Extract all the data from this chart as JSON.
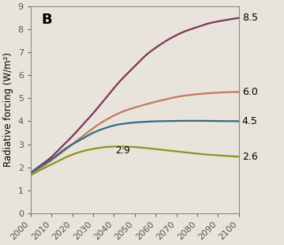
{
  "title_label": "B",
  "ylabel": "Radiative forcing (W/m²)",
  "xlim": [
    2000,
    2100
  ],
  "ylim": [
    0,
    9
  ],
  "yticks": [
    0,
    1,
    2,
    3,
    4,
    5,
    6,
    7,
    8,
    9
  ],
  "xticks": [
    2000,
    2010,
    2020,
    2030,
    2040,
    2050,
    2060,
    2070,
    2080,
    2090,
    2100
  ],
  "background_color": "#e8e4dc",
  "plot_bg_color": "#e8e4dc",
  "rcp85_color": "#7b3558",
  "rcp60_color": "#c07858",
  "rcp45_color": "#2e6a8a",
  "rcp26_color": "#8a9618",
  "annotation_text": "2.9",
  "rcp85_label": "8.5",
  "rcp60_label": "6.0",
  "rcp45_label": "4.5",
  "rcp26_label": "2.6",
  "label_fontsize": 9,
  "linewidth": 1.6,
  "tick_fontsize": 8,
  "ylabel_fontsize": 8.5,
  "title_fontsize": 13
}
